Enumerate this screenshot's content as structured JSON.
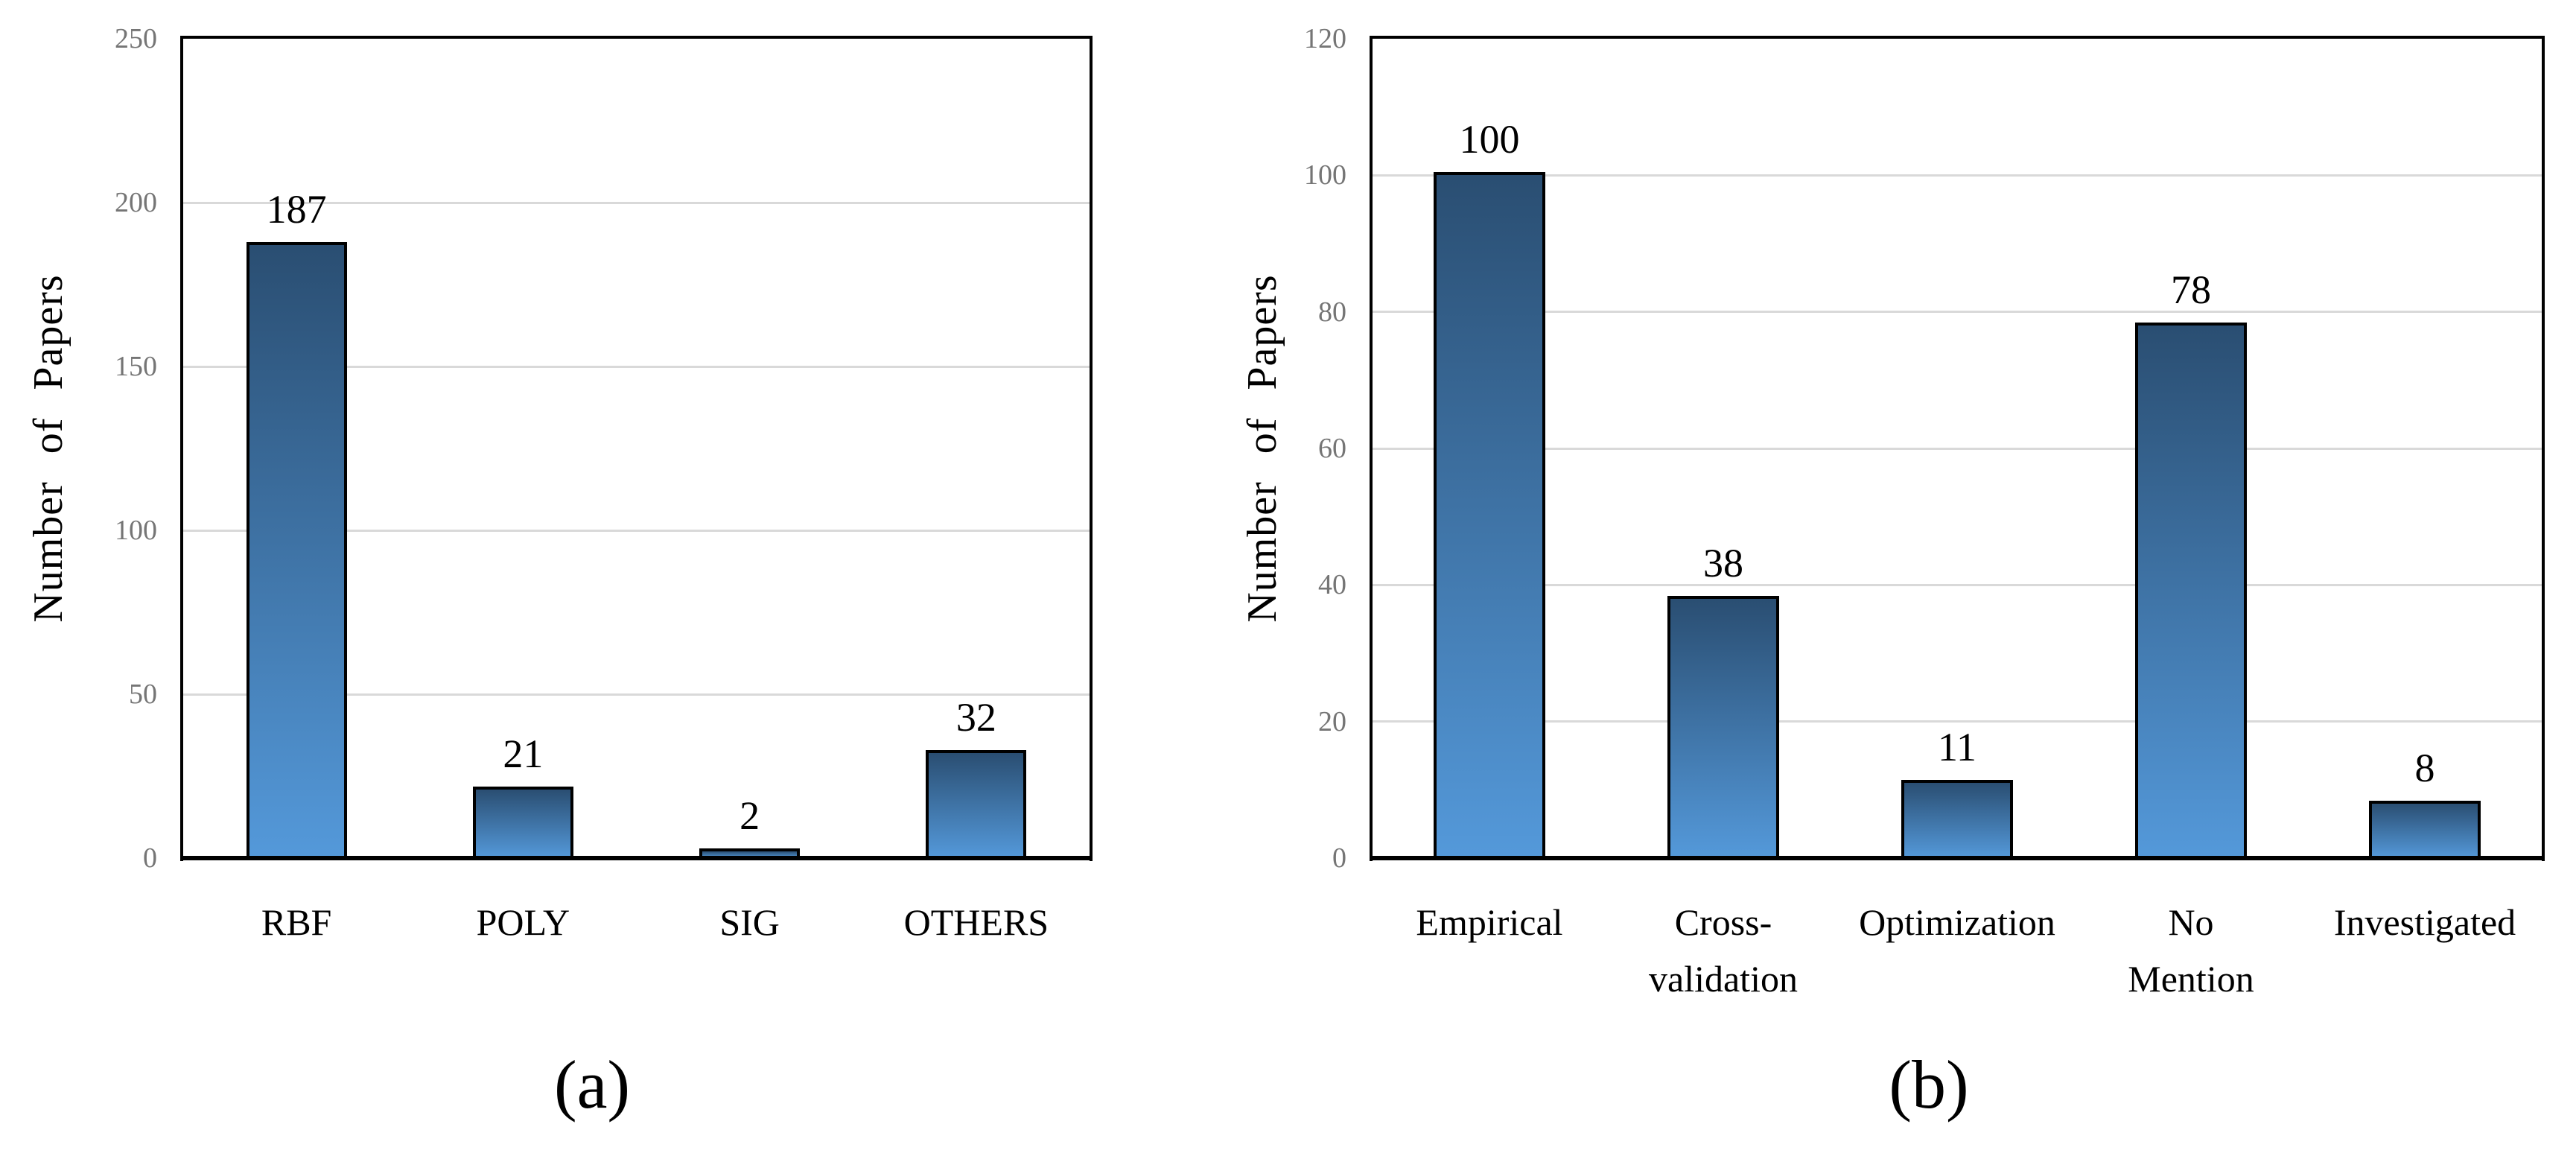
{
  "figure": {
    "background": "#ffffff"
  },
  "colors": {
    "bar_gradient_top": "#2a4e72",
    "bar_gradient_bottom": "#5499da",
    "bar_border": "#000000",
    "gridline": "#d9d9d9",
    "tick_label": "#757575",
    "frame": "#000000",
    "text": "#000000"
  },
  "chart_data": [
    {
      "type": "bar",
      "title": "",
      "caption": "(a)",
      "xlabel": "",
      "ylabel": "Number of Papers",
      "categories": [
        "RBF",
        "POLY",
        "SIG",
        "OTHERS"
      ],
      "values": [
        187,
        21,
        2,
        32
      ],
      "value_labels": [
        "187",
        "21",
        "2",
        "32"
      ],
      "ylim": [
        0,
        250
      ],
      "yticks": [
        0,
        50,
        100,
        150,
        200,
        250
      ],
      "grid": true,
      "legend": "none"
    },
    {
      "type": "bar",
      "title": "",
      "caption": "(b)",
      "xlabel": "",
      "ylabel": "Number of Papers",
      "categories": [
        "Empirical",
        "Cross-\nvalidation",
        "Optimization",
        "No\nMention",
        "Investigated"
      ],
      "values": [
        100,
        38,
        11,
        78,
        8
      ],
      "value_labels": [
        "100",
        "38",
        "11",
        "78",
        "8"
      ],
      "ylim": [
        0,
        120
      ],
      "yticks": [
        0,
        20,
        40,
        60,
        80,
        100,
        120
      ],
      "grid": true,
      "legend": "none"
    }
  ]
}
